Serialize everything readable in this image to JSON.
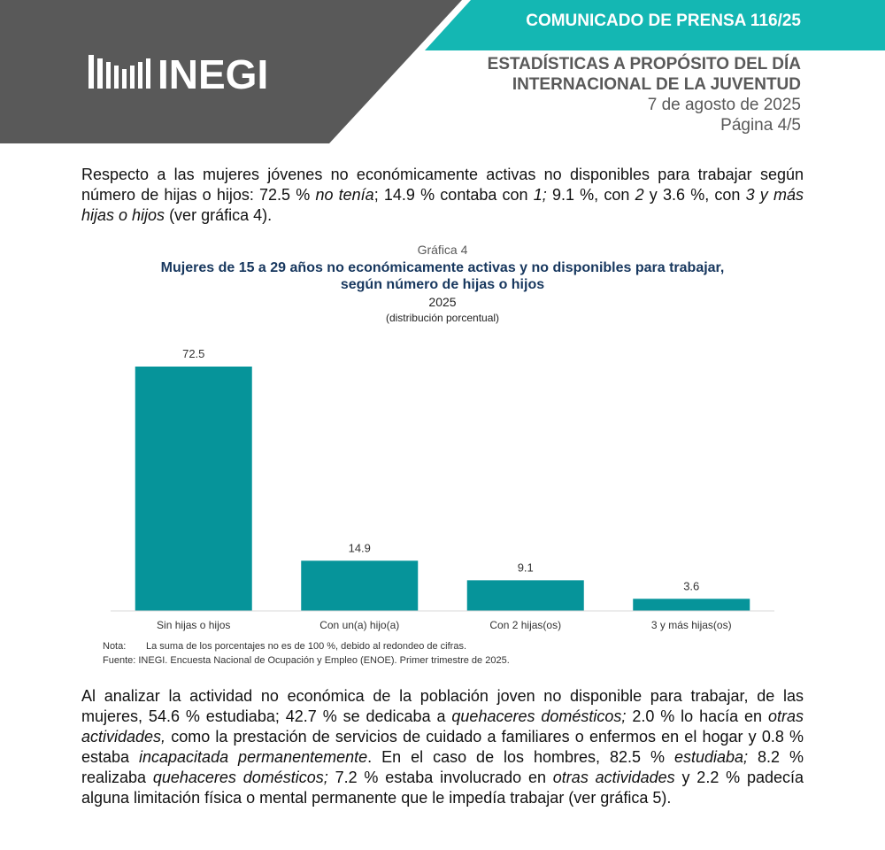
{
  "header": {
    "press_release": "COMUNICADO DE PRENSA 116/25",
    "logo": "INEGI",
    "title_lines": [
      "ESTADÍSTICAS A PROPÓSITO DEL DÍA",
      "INTERNACIONAL DE LA JUVENTUD"
    ],
    "date": "7 de agosto de 2025",
    "page": "Página 4/5"
  },
  "paragraphs": [
    {
      "runs": [
        {
          "text": "Respecto a las mujeres jóvenes no económicamente activas no disponibles para trabajar según número de hijas o hijos: 72.5 % ",
          "italic": false
        },
        {
          "text": "no tenía",
          "italic": true
        },
        {
          "text": "; 14.9 % contaba con ",
          "italic": false
        },
        {
          "text": "1;",
          "italic": true
        },
        {
          "text": " 9.1 %, con ",
          "italic": false
        },
        {
          "text": "2",
          "italic": true
        },
        {
          "text": " y 3.6 %, con ",
          "italic": false
        },
        {
          "text": "3 y más hijas o hijos",
          "italic": true
        },
        {
          "text": " (ver gráfica 4).",
          "italic": false
        }
      ]
    },
    {
      "runs": [
        {
          "text": "Al analizar la actividad no económica de la población joven no disponible para trabajar, de las mujeres, 54.6 % estudiaba; 42.7 % se dedicaba a ",
          "italic": false
        },
        {
          "text": "quehaceres domésticos;",
          "italic": true
        },
        {
          "text": " 2.0 % lo hacía en ",
          "italic": false
        },
        {
          "text": "otras actividades,",
          "italic": true
        },
        {
          "text": " como la prestación de servicios de cuidado a familiares o enfermos en el hogar y 0.8 % estaba ",
          "italic": false
        },
        {
          "text": "incapacitada permanentemente",
          "italic": true
        },
        {
          "text": ". En el caso de los hombres, 82.5 % ",
          "italic": false
        },
        {
          "text": "estudiaba;",
          "italic": true
        },
        {
          "text": " 8.2 % realizaba ",
          "italic": false
        },
        {
          "text": "quehaceres domésticos;",
          "italic": true
        },
        {
          "text": " 7.2 % estaba involucrado en ",
          "italic": false
        },
        {
          "text": "otras actividades",
          "italic": true
        },
        {
          "text": " y 2.2 % padecía alguna limitación física o mental permanente que le impedía trabajar (ver gráfica 5).",
          "italic": false
        }
      ]
    }
  ],
  "chart_data": {
    "type": "bar",
    "label": "Gráfica 4",
    "title": [
      "Mujeres de 15 a 29 años no económicamente activas y no disponibles para trabajar,",
      "según número de hijas o hijos"
    ],
    "subtitle": "2025",
    "unit": "(distribución porcentual)",
    "categories": [
      "Sin hijas o hijos",
      "Con un(a) hijo(a)",
      "Con 2 hijas(os)",
      "3 y más hijas(os)"
    ],
    "values": [
      72.5,
      14.9,
      9.1,
      3.6
    ],
    "color": "#06949a",
    "note_label": "Nota:",
    "note": "La suma de los porcentajes no es de 100 %, debido al redondeo de cifras.",
    "source": "Fuente: INEGI. Encuesta Nacional de Ocupación y Empleo (ENOE). Primer trimestre de 2025."
  }
}
